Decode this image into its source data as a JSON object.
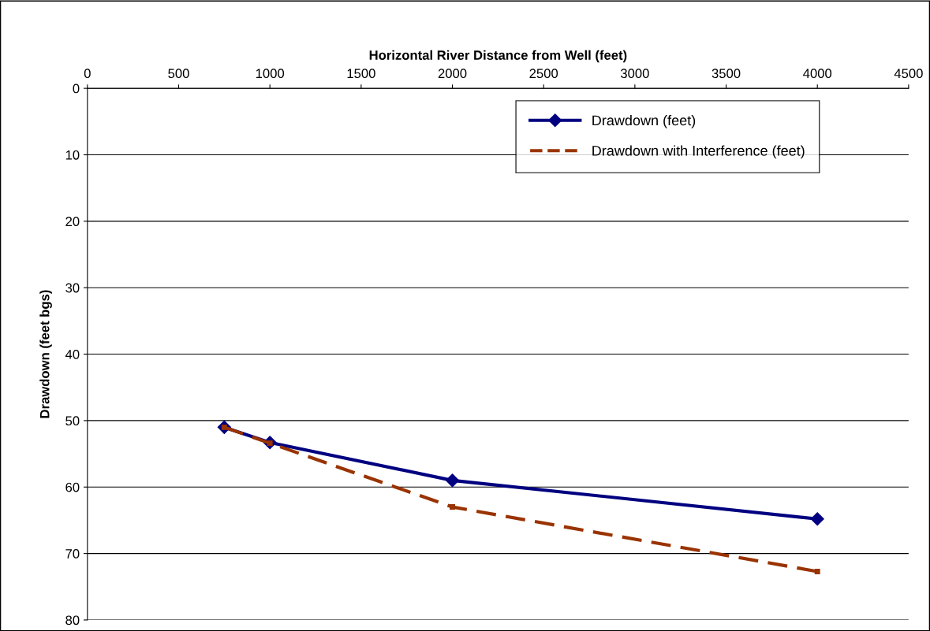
{
  "chart_data": {
    "type": "line",
    "xlabel": "Horizontal River Distance from Well (feet)",
    "ylabel": "Drawdown (feet bgs)",
    "x": [
      750,
      1000,
      2000,
      4000
    ],
    "series": [
      {
        "name": "Drawdown (feet)",
        "color": "#000080",
        "values": [
          51,
          53.3,
          59.0,
          64.8
        ],
        "marker": "diamond",
        "line_style": "solid"
      },
      {
        "name": "Drawdown with Interference (feet)",
        "color": "#993300",
        "values": [
          51,
          53.4,
          63.0,
          72.7
        ],
        "marker": "square",
        "line_style": "dashed"
      }
    ],
    "xlim": [
      0,
      4500
    ],
    "xticks": [
      0,
      500,
      1000,
      1500,
      2000,
      2500,
      3000,
      3500,
      4000,
      4500
    ],
    "ylim": [
      80,
      0
    ],
    "yticks": [
      0,
      10,
      20,
      30,
      40,
      50,
      60,
      70,
      80
    ],
    "grid": "y",
    "legend": "top right"
  }
}
